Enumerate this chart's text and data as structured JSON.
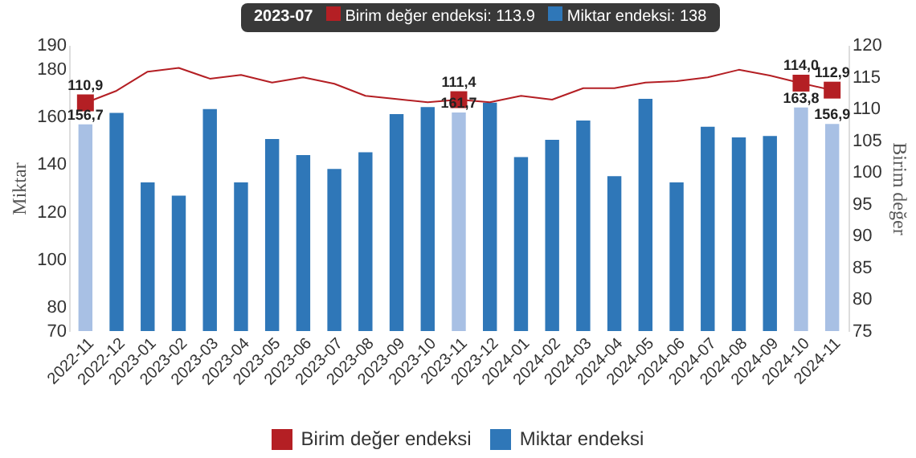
{
  "chart_data": {
    "type": "bar",
    "ylabel": "Miktar",
    "y2label": "Birim değer",
    "categories": [
      "2022-11",
      "2022-12",
      "2023-01",
      "2023-02",
      "2023-03",
      "2023-04",
      "2023-05",
      "2023-06",
      "2023-07",
      "2023-08",
      "2023-09",
      "2023-10",
      "2023-11",
      "2023-12",
      "2024-01",
      "2024-02",
      "2024-03",
      "2024-04",
      "2024-05",
      "2024-06",
      "2024-07",
      "2024-08",
      "2024-09",
      "2024-10",
      "2024-11"
    ],
    "series": [
      {
        "name": "Birim değer endeksi",
        "type": "line",
        "axis": "y2",
        "color": "#b41f24",
        "values": [
          110.9,
          112.8,
          115.8,
          116.4,
          114.7,
          115.3,
          114.1,
          114.9,
          113.9,
          112.0,
          111.5,
          111.0,
          111.4,
          111.0,
          112.0,
          111.4,
          113.2,
          113.2,
          114.1,
          114.3,
          114.9,
          116.1,
          115.2,
          114.0,
          112.9
        ],
        "value_labels": [
          "110,9",
          null,
          null,
          null,
          null,
          null,
          null,
          null,
          null,
          null,
          null,
          null,
          "111,4",
          null,
          null,
          null,
          null,
          null,
          null,
          null,
          null,
          null,
          null,
          "114,0",
          "112,9"
        ]
      },
      {
        "name": "Miktar endeksi",
        "type": "bar",
        "color": "#2f77b8",
        "colors": [
          "#a8c0e4",
          "#2f77b8",
          "#2f77b8",
          "#2f77b8",
          "#2f77b8",
          "#2f77b8",
          "#2f77b8",
          "#2f77b8",
          "#2f77b8",
          "#2f77b8",
          "#2f77b8",
          "#2f77b8",
          "#a8c0e4",
          "#2f77b8",
          "#2f77b8",
          "#2f77b8",
          "#2f77b8",
          "#2f77b8",
          "#2f77b8",
          "#2f77b8",
          "#2f77b8",
          "#2f77b8",
          "#2f77b8",
          "#a8c0e4",
          "#a8c0e4"
        ],
        "values": [
          156.7,
          161.5,
          132.4,
          126.8,
          163.1,
          132.4,
          150.6,
          143.8,
          138,
          145,
          161,
          164,
          161.7,
          165.8,
          143,
          150.2,
          158.3,
          135.0,
          167.4,
          132.4,
          155.7,
          151.2,
          151.8,
          163.8,
          156.9
        ],
        "value_labels": [
          "156,7",
          null,
          null,
          null,
          null,
          null,
          null,
          null,
          null,
          null,
          null,
          null,
          "161,7",
          null,
          null,
          null,
          null,
          null,
          null,
          null,
          null,
          null,
          null,
          "163,8",
          "156,9"
        ]
      }
    ],
    "ylim": [
      70,
      190
    ],
    "yticks": [
      70,
      80,
      100,
      120,
      140,
      160,
      180,
      190
    ],
    "y2lim": [
      75,
      120
    ],
    "y2ticks": [
      75,
      80,
      85,
      90,
      95,
      100,
      105,
      110,
      115,
      120
    ],
    "legend": "bottom",
    "annotations": [
      "2023-07",
      "Birim değer endeksi: 113.9",
      "Miktar endeksi: 138"
    ]
  }
}
